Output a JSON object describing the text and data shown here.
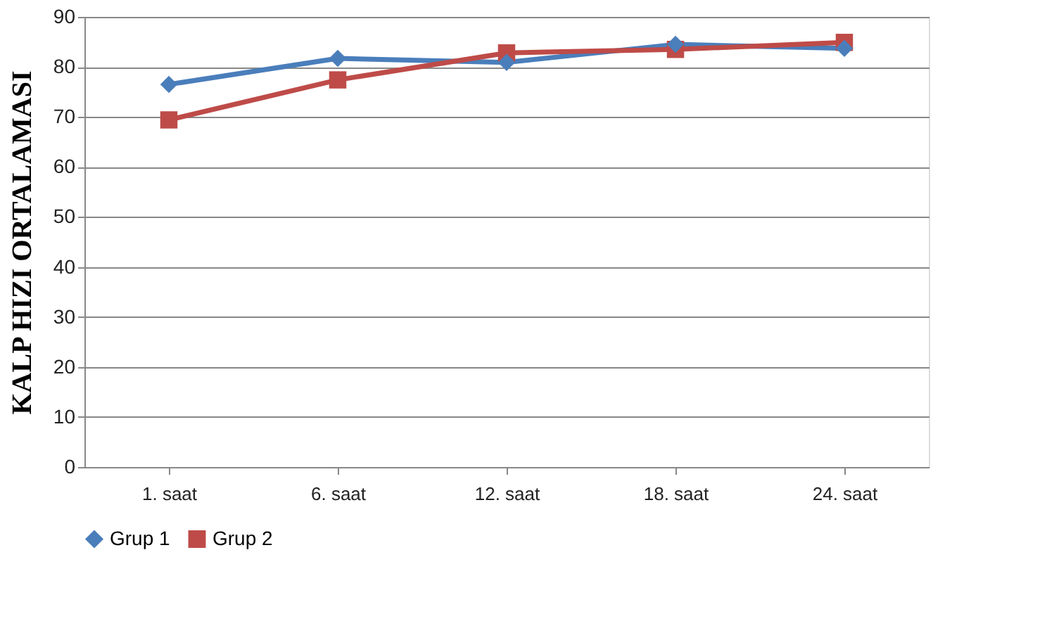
{
  "chart_data": {
    "type": "line",
    "ylabel": "KALP HIZI ORTALAMASI",
    "categories": [
      "1. saat",
      "6. saat",
      "12. saat",
      "18. saat",
      "24. saat"
    ],
    "series": [
      {
        "name": "Grup 1",
        "color": "#4a7ebb",
        "marker": "diamond",
        "values": [
          76.5,
          81.7,
          80.9,
          84.5,
          83.7
        ]
      },
      {
        "name": "Grup 2",
        "color": "#be4b48",
        "marker": "square",
        "values": [
          69.4,
          77.4,
          82.8,
          83.5,
          84.9
        ]
      }
    ],
    "ylim": [
      0,
      90
    ],
    "yticks": [
      0,
      10,
      20,
      30,
      40,
      50,
      60,
      70,
      80,
      90
    ],
    "grid": "y",
    "legend": "bottom"
  }
}
